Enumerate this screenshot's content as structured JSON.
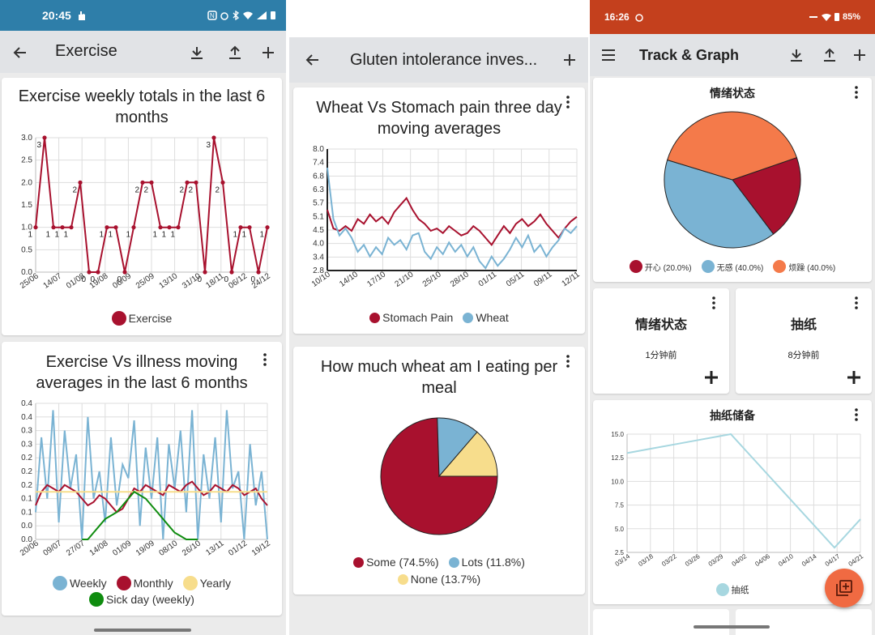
{
  "colors": {
    "crimson": "#a8112e",
    "blue": "#7ab3d3",
    "yellow": "#f7dd8c",
    "green": "#0f8c0f",
    "orange": "#f47a4a",
    "lightblue": "#a7d7e0",
    "status_red": "#c4401d",
    "status_blue": "#2a7ea8"
  },
  "panel1": {
    "status": {
      "time": "20:45"
    },
    "appbar": {
      "title": "Exercise"
    },
    "card1": {
      "title": "Exercise weekly totals in the last 6 months",
      "chart_data": {
        "type": "line",
        "title": "Exercise weekly totals in the last 6 months",
        "x_ticks": [
          "25/06",
          "14/07",
          "01/08",
          "19/08",
          "06/09",
          "25/09",
          "13/10",
          "31/10",
          "18/11",
          "06/12",
          "24/12"
        ],
        "y_ticks": [
          "0.0",
          "0.5",
          "1.0",
          "1.5",
          "2.0",
          "2.5",
          "3.0"
        ],
        "ylim": [
          0,
          3
        ],
        "series": [
          {
            "name": "Exercise",
            "values": [
              1,
              3,
              1,
              1,
              1,
              2,
              0,
              0,
              1,
              1,
              0,
              1,
              2,
              2,
              1,
              1,
              1,
              2,
              2,
              0,
              3,
              2,
              0,
              1,
              1,
              0,
              1
            ]
          }
        ],
        "point_labels": [
          "1",
          "3",
          "1",
          "1",
          "1",
          "2",
          "0",
          "0",
          "1",
          "1",
          "0",
          "1",
          "2",
          "2",
          "1",
          "1",
          "1",
          "2",
          "2",
          "0",
          "3",
          "2",
          "0",
          "1",
          "1",
          "0",
          "1"
        ]
      },
      "legend": [
        "Exercise"
      ]
    },
    "card2": {
      "title": "Exercise Vs illness moving averages in the last 6 months",
      "chart_data": {
        "type": "line",
        "title": "Exercise Vs illness moving averages in the last 6 months",
        "x_ticks": [
          "20/06",
          "09/07",
          "27/07",
          "14/08",
          "01/09",
          "19/09",
          "08/10",
          "26/10",
          "13/11",
          "01/12",
          "19/12"
        ],
        "y_ticks": [
          "0.0",
          "0.0",
          "0.1",
          "0.1",
          "0.2",
          "0.2",
          "0.2",
          "0.3",
          "0.3",
          "0.4",
          "0.4"
        ],
        "ylim": [
          0,
          0.4
        ],
        "series": [
          {
            "name": "Weekly",
            "values": [
              0.08,
              0.3,
              0.12,
              0.38,
              0.05,
              0.32,
              0.15,
              0.25,
              0.0,
              0.36,
              0.12,
              0.2,
              0.05,
              0.3,
              0.1,
              0.22,
              0.18,
              0.35,
              0.04,
              0.27,
              0.12,
              0.3,
              0.0,
              0.28,
              0.15,
              0.32,
              0.08,
              0.38,
              0.0,
              0.25,
              0.12,
              0.3,
              0.05,
              0.38,
              0.15,
              0.2,
              0.0,
              0.28,
              0.1,
              0.2,
              0.0
            ]
          },
          {
            "name": "Monthly",
            "values": [
              0.1,
              0.14,
              0.16,
              0.15,
              0.14,
              0.16,
              0.15,
              0.14,
              0.12,
              0.1,
              0.11,
              0.13,
              0.12,
              0.1,
              0.08,
              0.09,
              0.12,
              0.15,
              0.14,
              0.16,
              0.15,
              0.14,
              0.13,
              0.16,
              0.15,
              0.14,
              0.16,
              0.17,
              0.15,
              0.13,
              0.14,
              0.16,
              0.15,
              0.14,
              0.16,
              0.15,
              0.13,
              0.14,
              0.15,
              0.12,
              0.1
            ]
          },
          {
            "name": "Yearly",
            "values": [
              0.14,
              0.14,
              0.14,
              0.14,
              0.14,
              0.14,
              0.14,
              0.14,
              0.14,
              0.14,
              0.14,
              0.14,
              0.14,
              0.14,
              0.14,
              0.14,
              0.14,
              0.14,
              0.14,
              0.14,
              0.14,
              0.14,
              0.14,
              0.14,
              0.14,
              0.14,
              0.14,
              0.14,
              0.14,
              0.14,
              0.14,
              0.14,
              0.14,
              0.14,
              0.14,
              0.14,
              0.14,
              0.14,
              0.14,
              0.14,
              0.14
            ]
          },
          {
            "name": "Sick day (weekly)",
            "values": [
              null,
              null,
              null,
              null,
              null,
              null,
              null,
              null,
              0.0,
              0.0,
              0.02,
              0.04,
              0.06,
              0.07,
              0.08,
              0.1,
              0.12,
              0.14,
              0.13,
              0.12,
              0.1,
              0.08,
              0.06,
              0.04,
              0.02,
              0.01,
              0.0,
              0.0,
              0.0,
              null,
              null,
              null,
              null,
              null,
              null,
              null,
              null,
              null,
              null,
              null,
              null
            ]
          }
        ]
      },
      "legend": [
        "Weekly",
        "Monthly",
        "Yearly",
        "Sick day (weekly)"
      ]
    }
  },
  "panel2": {
    "appbar": {
      "title": "Gluten intolerance inves..."
    },
    "card1": {
      "title": "Wheat Vs Stomach pain three day moving averages",
      "chart_data": {
        "type": "line",
        "title": "Wheat Vs Stomach pain three day moving averages",
        "x_ticks": [
          "10/10",
          "14/10",
          "17/10",
          "21/10",
          "25/10",
          "28/10",
          "01/11",
          "05/11",
          "09/11",
          "12/11"
        ],
        "y_ticks": [
          "2.8",
          "3.4",
          "4.0",
          "4.5",
          "5.1",
          "5.7",
          "6.3",
          "6.8",
          "7.4",
          "8.0"
        ],
        "ylim": [
          2.8,
          8.0
        ],
        "series": [
          {
            "name": "Stomach Pain",
            "values": [
              5.4,
              4.6,
              4.5,
              4.7,
              4.5,
              5.0,
              4.8,
              5.2,
              4.9,
              5.1,
              4.8,
              5.3,
              5.6,
              5.9,
              5.4,
              5.0,
              4.8,
              4.5,
              4.6,
              4.4,
              4.7,
              4.5,
              4.3,
              4.4,
              4.7,
              4.5,
              4.2,
              3.9,
              4.3,
              4.7,
              4.4,
              4.8,
              5.0,
              4.7,
              4.9,
              5.2,
              4.8,
              4.5,
              4.2,
              4.6,
              4.9,
              5.1
            ]
          },
          {
            "name": "Wheat",
            "values": [
              7.2,
              5.0,
              4.3,
              4.6,
              4.2,
              3.6,
              3.9,
              3.4,
              3.8,
              3.5,
              4.2,
              3.9,
              4.1,
              3.7,
              4.3,
              4.4,
              3.6,
              3.3,
              3.8,
              3.5,
              4.0,
              3.6,
              3.9,
              3.4,
              3.8,
              3.2,
              2.9,
              3.4,
              3.0,
              3.3,
              3.7,
              4.2,
              3.8,
              4.3,
              3.6,
              3.9,
              3.4,
              3.8,
              4.1,
              4.6,
              4.4,
              4.7
            ]
          }
        ]
      },
      "legend": [
        "Stomach Pain",
        "Wheat"
      ]
    },
    "card2": {
      "title": "How much wheat am I eating per meal",
      "chart_data": {
        "type": "pie",
        "title": "How much wheat am I eating per meal",
        "series": [
          {
            "values": [
              74.5,
              11.8,
              13.7
            ]
          }
        ],
        "categories": [
          "Some",
          "Lots",
          "None"
        ]
      },
      "legend": [
        "Some (74.5%)",
        "Lots (11.8%)",
        "None (13.7%)"
      ]
    }
  },
  "panel3": {
    "status": {
      "time": "16:26",
      "battery": "85%"
    },
    "appbar": {
      "title": "Track & Graph"
    },
    "card1": {
      "title": "情绪状态",
      "chart_data": {
        "type": "pie",
        "title": "情绪状态",
        "categories": [
          "开心",
          "无感",
          "烦躁"
        ],
        "series": [
          {
            "values": [
              20.0,
              40.0,
              40.0
            ]
          }
        ]
      },
      "legend": [
        "开心 (20.0%)",
        "无感 (40.0%)",
        "烦躁 (40.0%)"
      ]
    },
    "tracker1": {
      "name": "情绪状态",
      "time": "1分钟前"
    },
    "tracker2": {
      "name": "抽纸",
      "time": "8分钟前"
    },
    "card4": {
      "title": "抽纸储备",
      "chart_data": {
        "type": "line",
        "title": "抽纸储备",
        "x_ticks": [
          "03/14",
          "03/18",
          "03/22",
          "03/26",
          "03/29",
          "04/02",
          "04/06",
          "04/10",
          "04/14",
          "04/17",
          "04/21"
        ],
        "y_ticks": [
          "2.5",
          "5.0",
          "7.5",
          "10.0",
          "12.5",
          "15.0"
        ],
        "ylim": [
          2.5,
          15.0
        ],
        "series": [
          {
            "name": "抽纸",
            "values": [
              13.0,
              13.5,
              14.0,
              14.5,
              15.0,
              12.0,
              9.0,
              6.0,
              3.0,
              6.0
            ]
          }
        ]
      },
      "legend": [
        "抽纸"
      ]
    }
  }
}
